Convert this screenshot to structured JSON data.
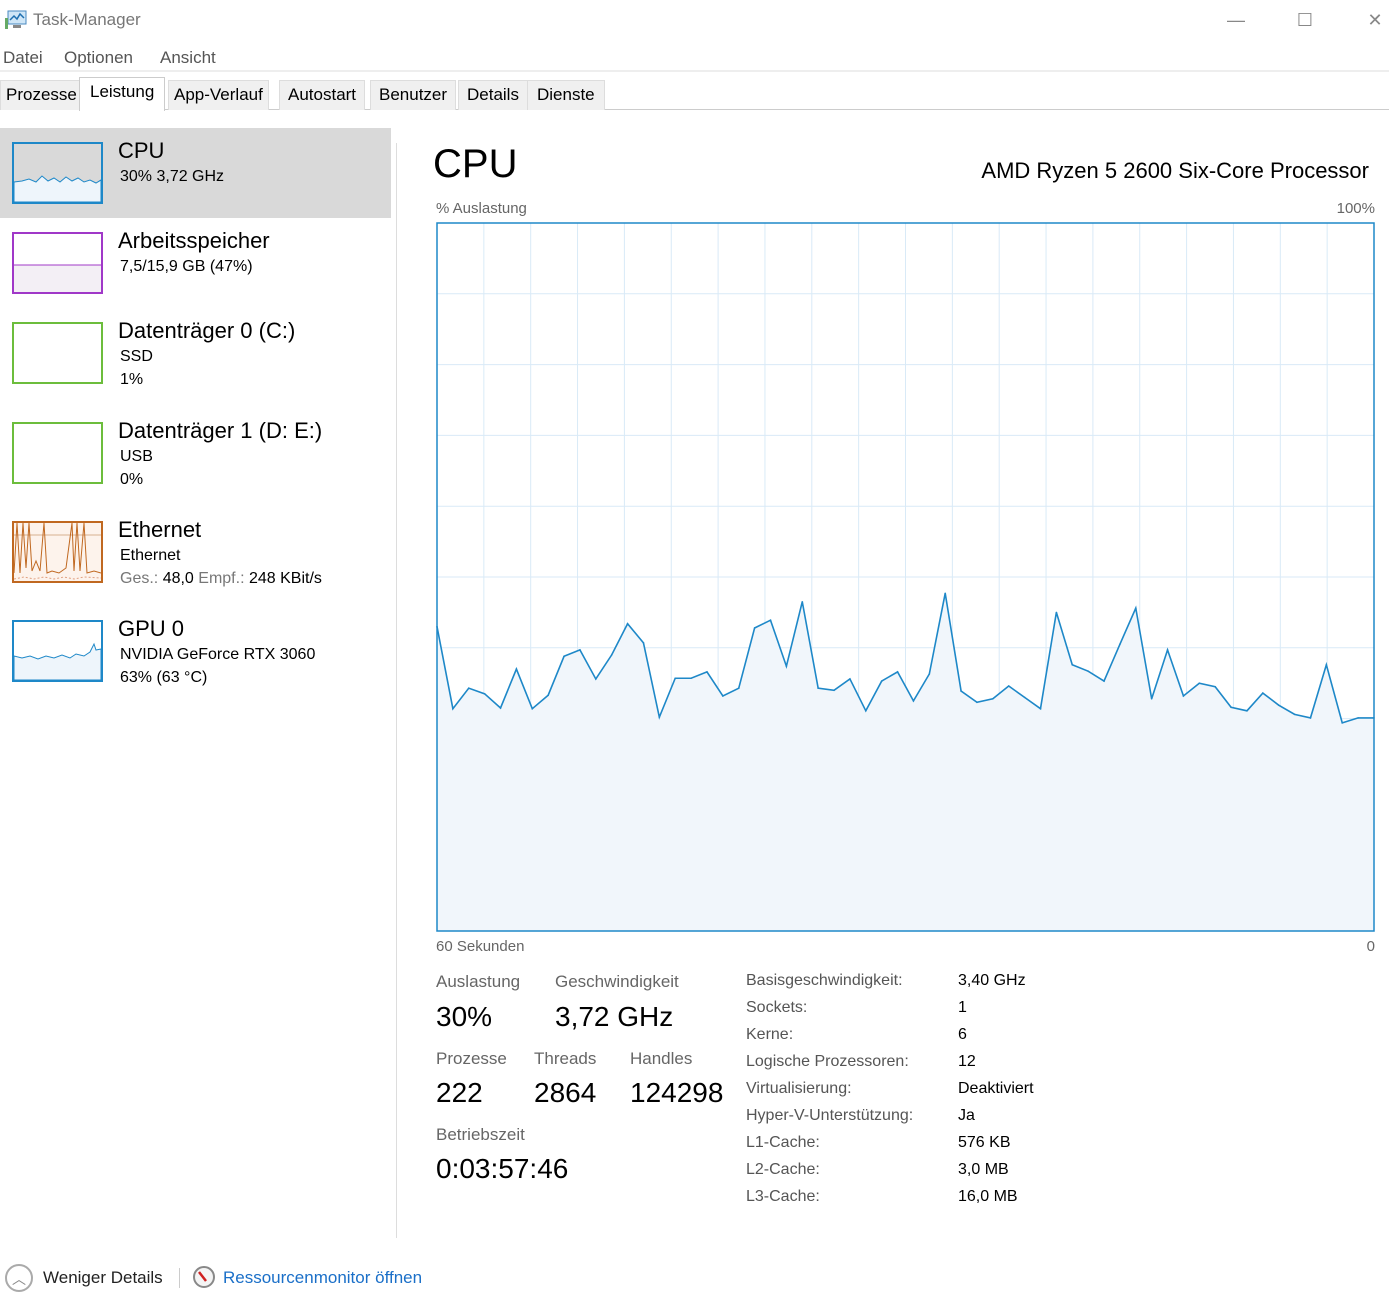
{
  "window": {
    "title": "Task-Manager",
    "minimize": "—",
    "maximize": "☐",
    "close": "✕"
  },
  "menu": [
    "Datei",
    "Optionen",
    "Ansicht"
  ],
  "tabs": [
    "Prozesse",
    "Leistung",
    "App-Verlauf",
    "Autostart",
    "Benutzer",
    "Details",
    "Dienste"
  ],
  "active_tab": "Leistung",
  "sidebar": {
    "items": [
      {
        "name": "CPU",
        "line1": "30% 3,72 GHz",
        "color": "#1e88c8"
      },
      {
        "name": "Arbeitsspeicher",
        "line1": "7,5/15,9 GB (47%)",
        "color": "#a038c8"
      },
      {
        "name": "Datenträger 0 (C:)",
        "line1": "SSD",
        "line2": "1%",
        "color": "#6cbd3c"
      },
      {
        "name": "Datenträger 1 (D: E:)",
        "line1": "USB",
        "line2": "0%",
        "color": "#6cbd3c"
      },
      {
        "name": "Ethernet",
        "line1": "Ethernet",
        "send_label": "Ges.:",
        "send": "48,0",
        "recv_label": "Empf.:",
        "recv": "248 KBit/s",
        "color": "#c06820"
      },
      {
        "name": "GPU 0",
        "line1": "NVIDIA GeForce RTX 3060",
        "line2": "63%  (63 °C)",
        "color": "#1e88c8"
      }
    ]
  },
  "main": {
    "title": "CPU",
    "model": "AMD Ryzen 5 2600 Six-Core Processor",
    "y_label": "% Auslastung",
    "y_max_label": "100%",
    "x_left_label": "60 Sekunden",
    "x_right_label": "0",
    "stats": {
      "util_label": "Auslastung",
      "util": "30%",
      "speed_label": "Geschwindigkeit",
      "speed": "3,72 GHz",
      "proc_label": "Prozesse",
      "proc": "222",
      "threads_label": "Threads",
      "threads": "2864",
      "handles_label": "Handles",
      "handles": "124298",
      "uptime_label": "Betriebszeit",
      "uptime": "0:03:57:46"
    },
    "details": [
      {
        "k": "Basisgeschwindigkeit:",
        "v": "3,40 GHz"
      },
      {
        "k": "Sockets:",
        "v": "1"
      },
      {
        "k": "Kerne:",
        "v": "6"
      },
      {
        "k": "Logische Prozessoren:",
        "v": "12"
      },
      {
        "k": "Virtualisierung:",
        "v": "Deaktiviert"
      },
      {
        "k": "Hyper-V-Unterstützung:",
        "v": "Ja"
      },
      {
        "k": "L1-Cache:",
        "v": "576 KB"
      },
      {
        "k": "L2-Cache:",
        "v": "3,0 MB"
      },
      {
        "k": "L3-Cache:",
        "v": "16,0 MB"
      }
    ]
  },
  "footer": {
    "less": "Weniger Details",
    "resmon": "Ressourcenmonitor öffnen"
  },
  "chart_data": {
    "type": "area",
    "ylim": [
      0,
      100
    ],
    "xlim": [
      60,
      0
    ],
    "grid": true,
    "color": "#1e88c8",
    "ylabel": "% Auslastung",
    "xlabel": "60 Sekunden",
    "values": [
      43,
      31.4,
      34.3,
      33.5,
      31.5,
      37,
      31.4,
      33.3,
      38.8,
      39.7,
      35.6,
      39,
      43.4,
      40.7,
      30.2,
      35.7,
      35.7,
      36.6,
      33.2,
      34.3,
      42.8,
      43.9,
      37.4,
      46.5,
      34.3,
      34,
      35.6,
      31.1,
      35.3,
      36.6,
      32.5,
      36.3,
      47.7,
      33.9,
      32.3,
      32.8,
      34.6,
      33,
      31.4,
      45,
      37.6,
      36.7,
      35.3,
      40.5,
      45.6,
      32.8,
      39.7,
      33.2,
      35,
      34.5,
      31.6,
      31.1,
      33.6,
      31.9,
      30.6,
      30.1,
      37.6,
      29.4,
      30.1,
      30.1
    ]
  }
}
